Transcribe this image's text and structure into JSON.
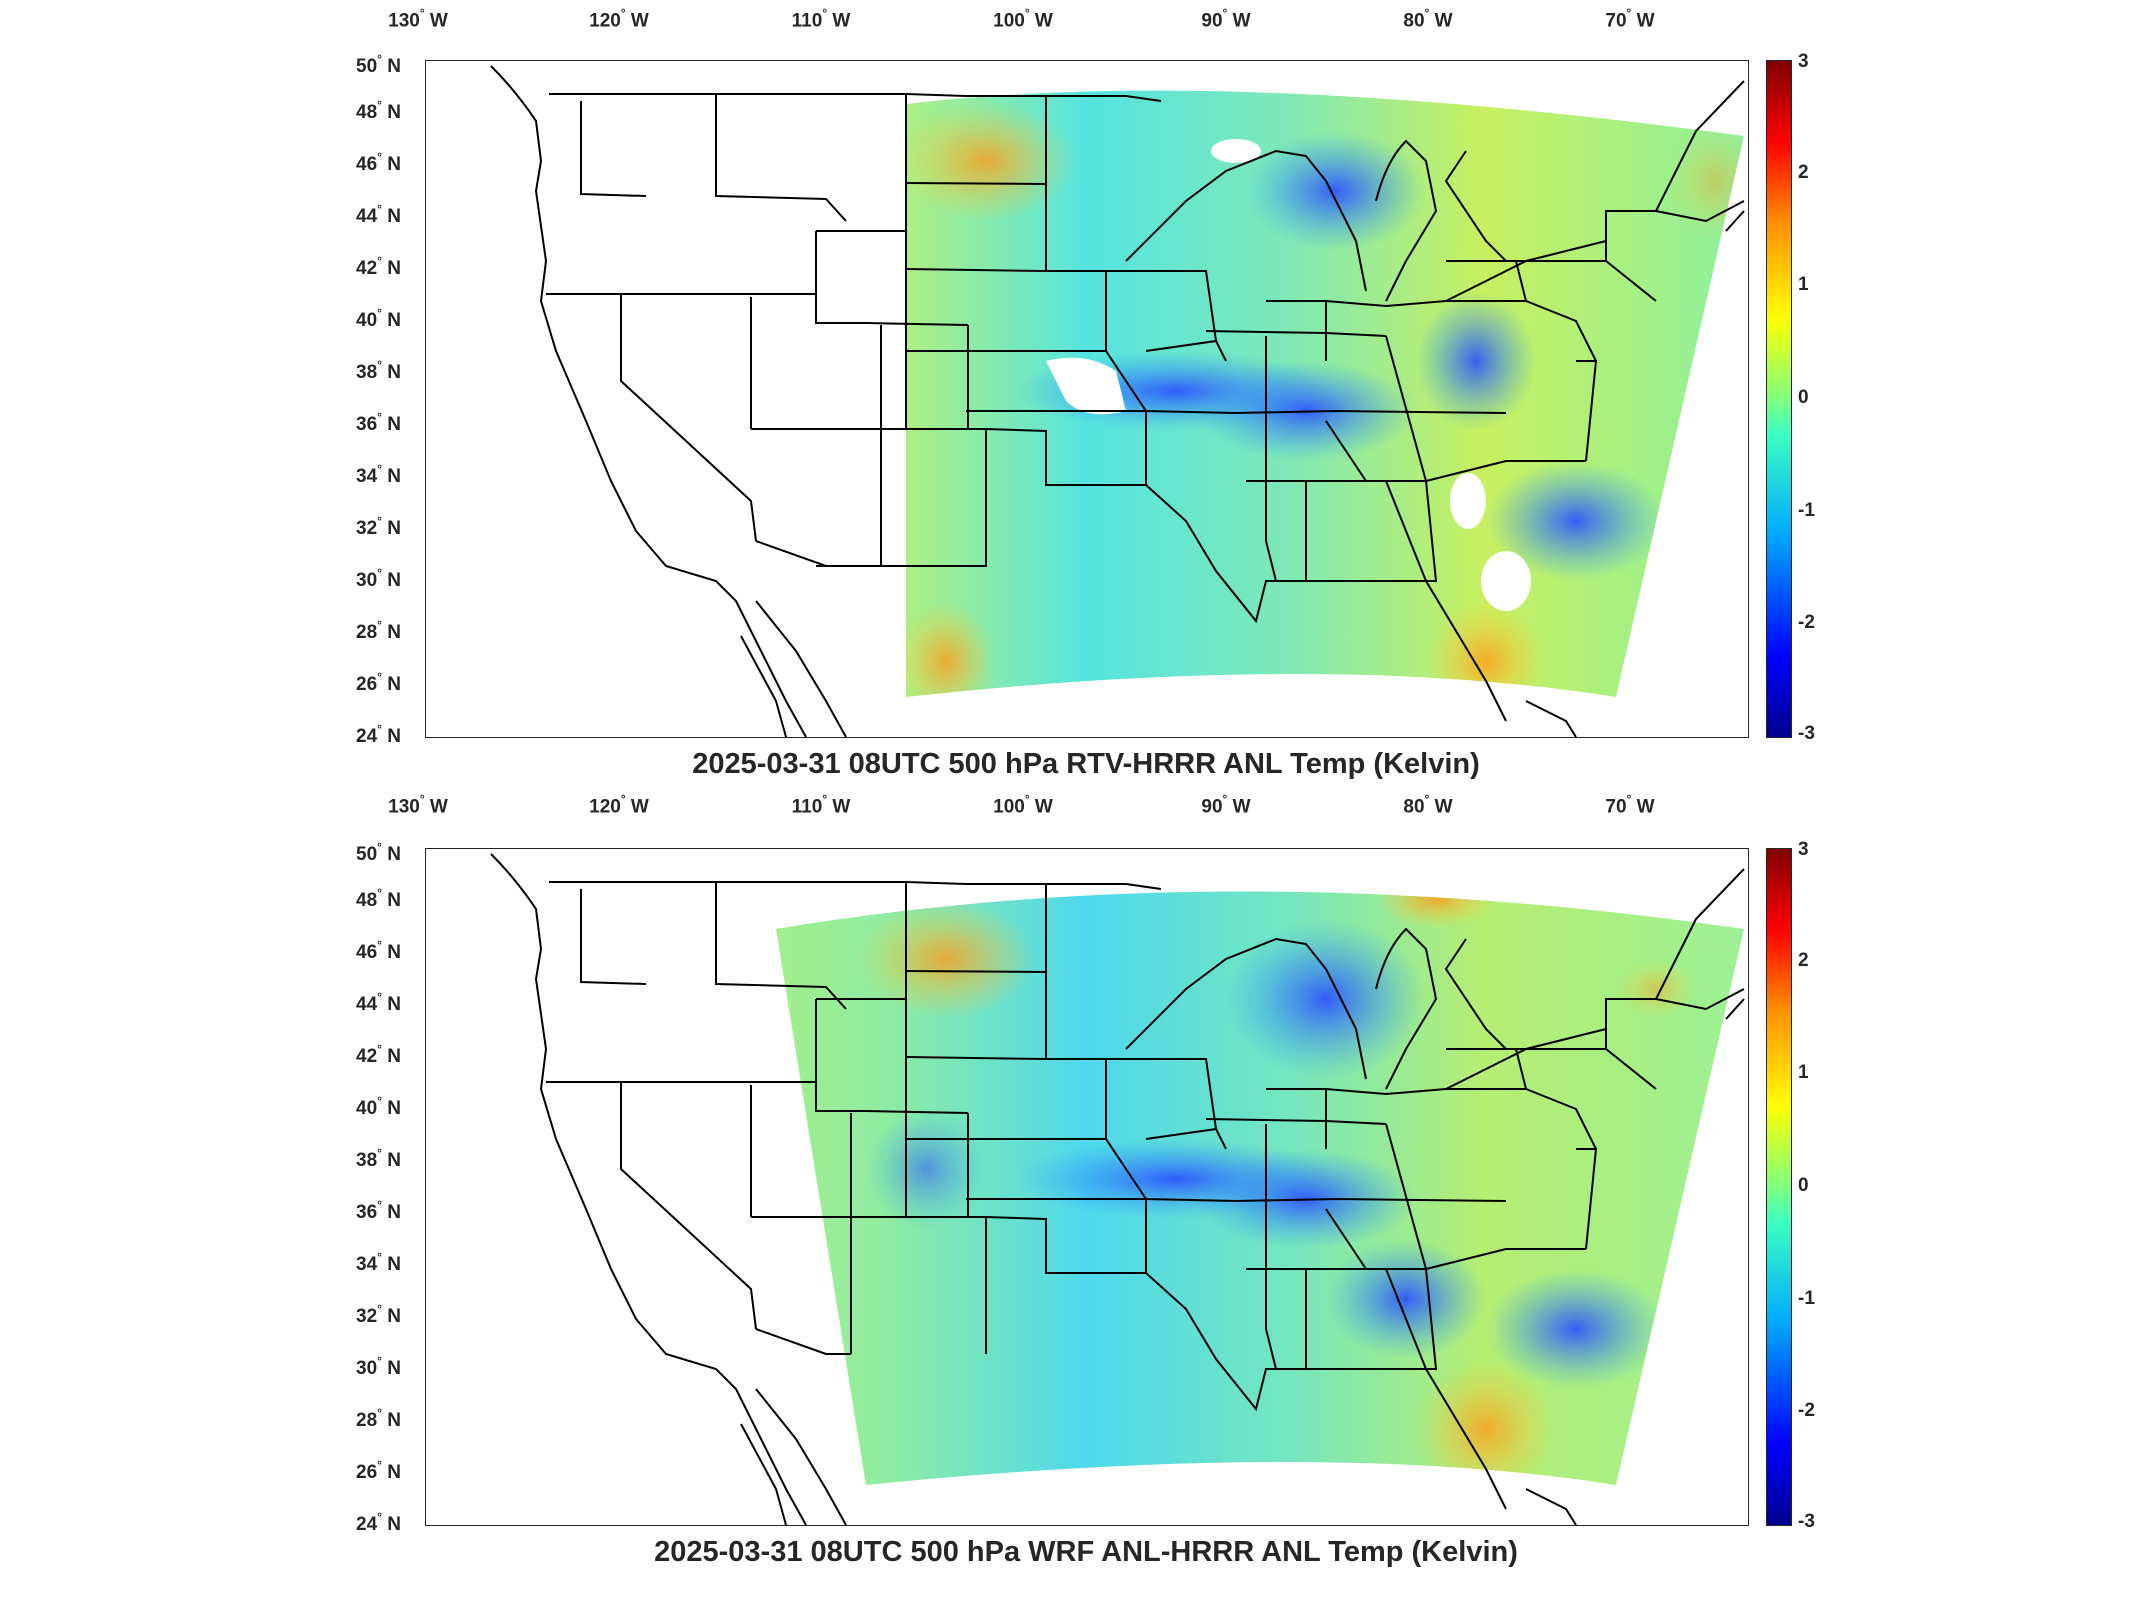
{
  "panels": [
    {
      "id": "top",
      "title": "2025-03-31 08UTC 500 hPa RTV-HRRR ANL Temp (Kelvin)",
      "colorbar_ticks": [
        "3",
        "2",
        "1",
        "0",
        "-1",
        "-2",
        "-3"
      ]
    },
    {
      "id": "bottom",
      "title": "2025-03-31 08UTC 500 hPa WRF ANL-HRRR ANL Temp (Kelvin)",
      "colorbar_ticks": [
        "3",
        "2",
        "1",
        "0",
        "-1",
        "-2",
        "-3"
      ]
    }
  ],
  "x_ticks": [
    {
      "deg": "130",
      "dir": "W"
    },
    {
      "deg": "120",
      "dir": "W"
    },
    {
      "deg": "110",
      "dir": "W"
    },
    {
      "deg": "100",
      "dir": "W"
    },
    {
      "deg": "90",
      "dir": "W"
    },
    {
      "deg": "80",
      "dir": "W"
    },
    {
      "deg": "70",
      "dir": "W"
    }
  ],
  "y_ticks": [
    {
      "deg": "50",
      "dir": "N"
    },
    {
      "deg": "48",
      "dir": "N"
    },
    {
      "deg": "46",
      "dir": "N"
    },
    {
      "deg": "44",
      "dir": "N"
    },
    {
      "deg": "42",
      "dir": "N"
    },
    {
      "deg": "40",
      "dir": "N"
    },
    {
      "deg": "38",
      "dir": "N"
    },
    {
      "deg": "36",
      "dir": "N"
    },
    {
      "deg": "34",
      "dir": "N"
    },
    {
      "deg": "32",
      "dir": "N"
    },
    {
      "deg": "30",
      "dir": "N"
    },
    {
      "deg": "28",
      "dir": "N"
    },
    {
      "deg": "26",
      "dir": "N"
    },
    {
      "deg": "24",
      "dir": "N"
    }
  ],
  "colors": {
    "cold": "#0033ff",
    "cool": "#33ccff",
    "neutral": "#66ffcc",
    "warm": "#ffee33",
    "hot": "#ff8c1a",
    "line": "#000000"
  },
  "colorbar_range": [
    -3,
    3
  ]
}
